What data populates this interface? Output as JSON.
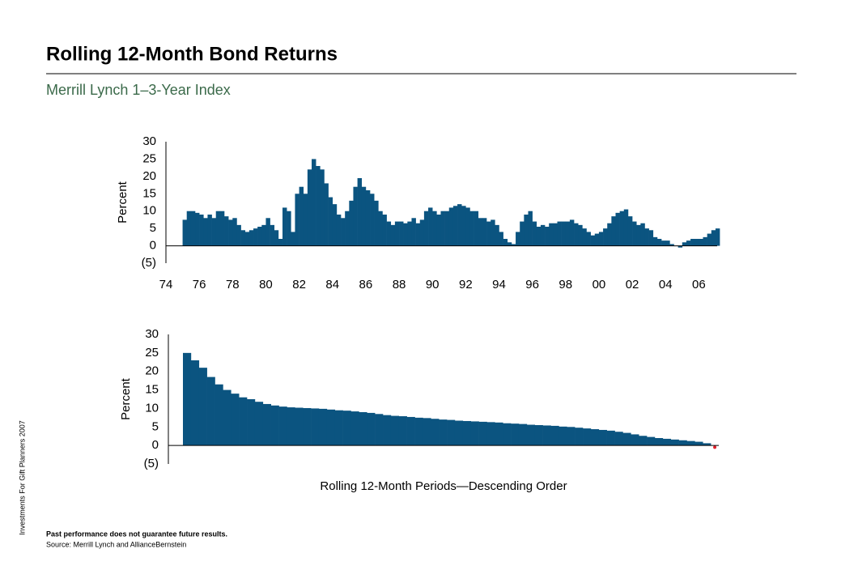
{
  "header": {
    "title": "Rolling 12-Month Bond Returns",
    "subtitle": "Merrill Lynch 1–3-Year Index"
  },
  "side_note": "Investments For Gift Planners 2007",
  "footer": {
    "disclaimer": "Past performance does not guarantee future results.",
    "source": "Source: Merrill Lynch and AllianceBernstein"
  },
  "chart_data": [
    {
      "type": "bar",
      "ylabel": "Percent",
      "color": "#0b5480",
      "xlim": [
        1974,
        2007.1
      ],
      "ylim": [
        -5,
        30
      ],
      "yticks": [
        {
          "value": -5,
          "label": "(5)"
        },
        0,
        5,
        10,
        15,
        20,
        25,
        30
      ],
      "xticks": [
        {
          "value": 1974,
          "label": "74"
        },
        {
          "value": 1976,
          "label": "76"
        },
        {
          "value": 1978,
          "label": "78"
        },
        {
          "value": 1980,
          "label": "80"
        },
        {
          "value": 1982,
          "label": "82"
        },
        {
          "value": 1984,
          "label": "84"
        },
        {
          "value": 1986,
          "label": "86"
        },
        {
          "value": 1988,
          "label": "88"
        },
        {
          "value": 1990,
          "label": "90"
        },
        {
          "value": 1992,
          "label": "92"
        },
        {
          "value": 1994,
          "label": "94"
        },
        {
          "value": 1996,
          "label": "96"
        },
        {
          "value": 1998,
          "label": "98"
        },
        {
          "value": 2000,
          "label": "00"
        },
        {
          "value": 2002,
          "label": "02"
        },
        {
          "value": 2004,
          "label": "04"
        },
        {
          "value": 2006,
          "label": "06"
        }
      ],
      "x": [
        1975,
        1975.25,
        1975.5,
        1975.75,
        1976,
        1976.25,
        1976.5,
        1976.75,
        1977,
        1977.25,
        1977.5,
        1977.75,
        1978,
        1978.25,
        1978.5,
        1978.75,
        1979,
        1979.25,
        1979.5,
        1979.75,
        1980,
        1980.25,
        1980.5,
        1980.75,
        1981,
        1981.25,
        1981.5,
        1981.75,
        1982,
        1982.25,
        1982.5,
        1982.75,
        1983,
        1983.25,
        1983.5,
        1983.75,
        1984,
        1984.25,
        1984.5,
        1984.75,
        1985,
        1985.25,
        1985.5,
        1985.75,
        1986,
        1986.25,
        1986.5,
        1986.75,
        1987,
        1987.25,
        1987.5,
        1987.75,
        1988,
        1988.25,
        1988.5,
        1988.75,
        1989,
        1989.25,
        1989.5,
        1989.75,
        1990,
        1990.25,
        1990.5,
        1990.75,
        1991,
        1991.25,
        1991.5,
        1991.75,
        1992,
        1992.25,
        1992.5,
        1992.75,
        1993,
        1993.25,
        1993.5,
        1993.75,
        1994,
        1994.25,
        1994.5,
        1994.75,
        1995,
        1995.25,
        1995.5,
        1995.75,
        1996,
        1996.25,
        1996.5,
        1996.75,
        1997,
        1997.25,
        1997.5,
        1997.75,
        1998,
        1998.25,
        1998.5,
        1998.75,
        1999,
        1999.25,
        1999.5,
        1999.75,
        2000,
        2000.25,
        2000.5,
        2000.75,
        2001,
        2001.25,
        2001.5,
        2001.75,
        2002,
        2002.25,
        2002.5,
        2002.75,
        2003,
        2003.25,
        2003.5,
        2003.75,
        2004,
        2004.25,
        2004.5,
        2004.75,
        2005,
        2005.25,
        2005.5,
        2005.75,
        2006,
        2006.25,
        2006.5,
        2006.75,
        2007
      ],
      "values": [
        7.5,
        10,
        10,
        9.5,
        9,
        8,
        9,
        8,
        10,
        10,
        8.5,
        7.5,
        8,
        6,
        4.5,
        4,
        4.5,
        5,
        5.5,
        6,
        8,
        6,
        4.5,
        2,
        11,
        10,
        4,
        15,
        17,
        15,
        22,
        25,
        23,
        22,
        18,
        14,
        12,
        9,
        8,
        10,
        13,
        17,
        19.5,
        17,
        16,
        15,
        13,
        10,
        9,
        7,
        6,
        7,
        7,
        6.5,
        7,
        8,
        6.5,
        7.5,
        10,
        11,
        10,
        9,
        10,
        10,
        11,
        11.5,
        12,
        11.5,
        11,
        10,
        10,
        8,
        8,
        7,
        7.5,
        6,
        4,
        2,
        1,
        0.5,
        4,
        7,
        9,
        10,
        7,
        5.5,
        6,
        5.5,
        6.5,
        6.5,
        7,
        7,
        7,
        7.5,
        6.5,
        6,
        5,
        4,
        3,
        3.5,
        4,
        5,
        6.5,
        8.5,
        9.5,
        10,
        10.5,
        8.5,
        7,
        6,
        6.5,
        5,
        4.5,
        2.5,
        2,
        1.5,
        1.5,
        0.5,
        0,
        -0.5,
        1,
        1.5,
        2,
        2,
        2,
        2.5,
        3.5,
        4.5,
        5
      ]
    },
    {
      "type": "bar",
      "ylabel": "Percent",
      "xlabel": "Rolling 12-Month Periods—Descending Order",
      "color": "#0b5480",
      "negative_color": "#e0202a",
      "ylim": [
        -5,
        30
      ],
      "yticks": [
        {
          "value": -5,
          "label": "(5)"
        },
        0,
        5,
        10,
        15,
        20,
        25,
        30
      ],
      "values": [
        25,
        23,
        21,
        18.5,
        16.5,
        15,
        14,
        13,
        12.5,
        11.8,
        11.2,
        10.8,
        10.5,
        10.3,
        10.2,
        10.1,
        10,
        9.9,
        9.7,
        9.5,
        9.4,
        9.2,
        9,
        8.8,
        8.5,
        8.2,
        8,
        7.9,
        7.7,
        7.5,
        7.4,
        7.2,
        7,
        6.9,
        6.7,
        6.6,
        6.5,
        6.4,
        6.3,
        6.2,
        6,
        5.9,
        5.8,
        5.6,
        5.5,
        5.4,
        5.3,
        5.1,
        5,
        4.8,
        4.6,
        4.4,
        4.2,
        4,
        3.7,
        3.4,
        3,
        2.6,
        2.3,
        2,
        1.8,
        1.6,
        1.4,
        1.2,
        1,
        0.6,
        -0.5
      ]
    }
  ]
}
